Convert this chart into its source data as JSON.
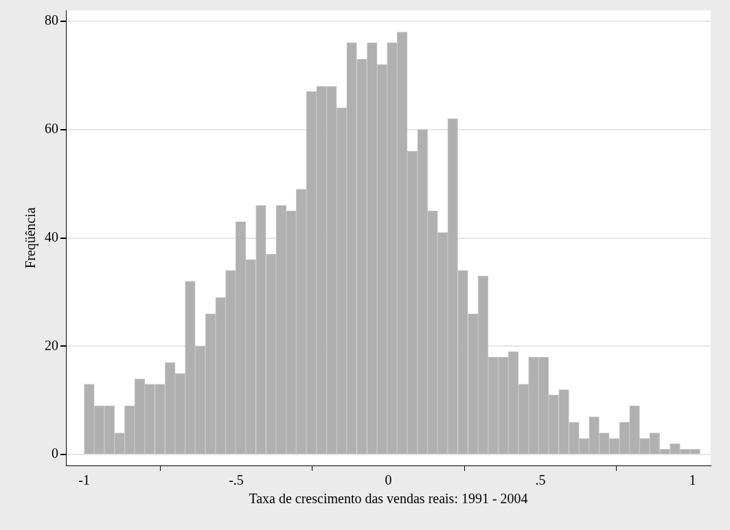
{
  "chart_data": {
    "type": "histogram",
    "xlabel": "Taxa de crescimento das vendas reais: 1991 - 2004",
    "ylabel": "Freqüência",
    "bins": [
      -1,
      -0.967,
      -0.934,
      -0.9,
      -0.867,
      -0.834,
      -0.801,
      -0.768,
      -0.734,
      -0.701,
      -0.668,
      -0.635,
      -0.602,
      -0.568,
      -0.535,
      -0.502,
      -0.469,
      -0.436,
      -0.402,
      -0.369,
      -0.336,
      -0.303,
      -0.27,
      -0.236,
      -0.203,
      -0.17,
      -0.137,
      -0.104,
      -0.07,
      -0.037,
      -0.004,
      0.029,
      0.062,
      0.096,
      0.129,
      0.162,
      0.195,
      0.228,
      0.262,
      0.295,
      0.328,
      0.361,
      0.394,
      0.428,
      0.461,
      0.494,
      0.527,
      0.56,
      0.594,
      0.627,
      0.66,
      0.693,
      0.726,
      0.76,
      0.793,
      0.826,
      0.859,
      0.892,
      0.926,
      0.959,
      0.992,
      1.025
    ],
    "values": [
      13,
      9,
      9,
      4,
      9,
      14,
      13,
      13,
      17,
      15,
      32,
      20,
      26,
      29,
      34,
      43,
      36,
      46,
      37,
      46,
      45,
      49,
      67,
      68,
      68,
      64,
      76,
      73,
      76,
      72,
      76,
      78,
      56,
      60,
      45,
      41,
      62,
      34,
      26,
      33,
      18,
      18,
      19,
      13,
      18,
      18,
      11,
      12,
      6,
      3,
      7,
      4,
      3,
      6,
      9,
      3,
      4,
      1,
      2,
      1,
      1
    ],
    "color": "#b0b0b0",
    "xlim": [
      -1.06,
      1.06
    ],
    "ylim": [
      -2,
      82
    ],
    "xticks": [
      {
        "value": -1,
        "label": "-1"
      },
      {
        "value": -0.5,
        "label": "-.5"
      },
      0,
      {
        "value": 0.5,
        "label": ".5"
      },
      1
    ],
    "yticks": [
      0,
      20,
      40,
      60,
      80
    ],
    "grid": "y"
  }
}
